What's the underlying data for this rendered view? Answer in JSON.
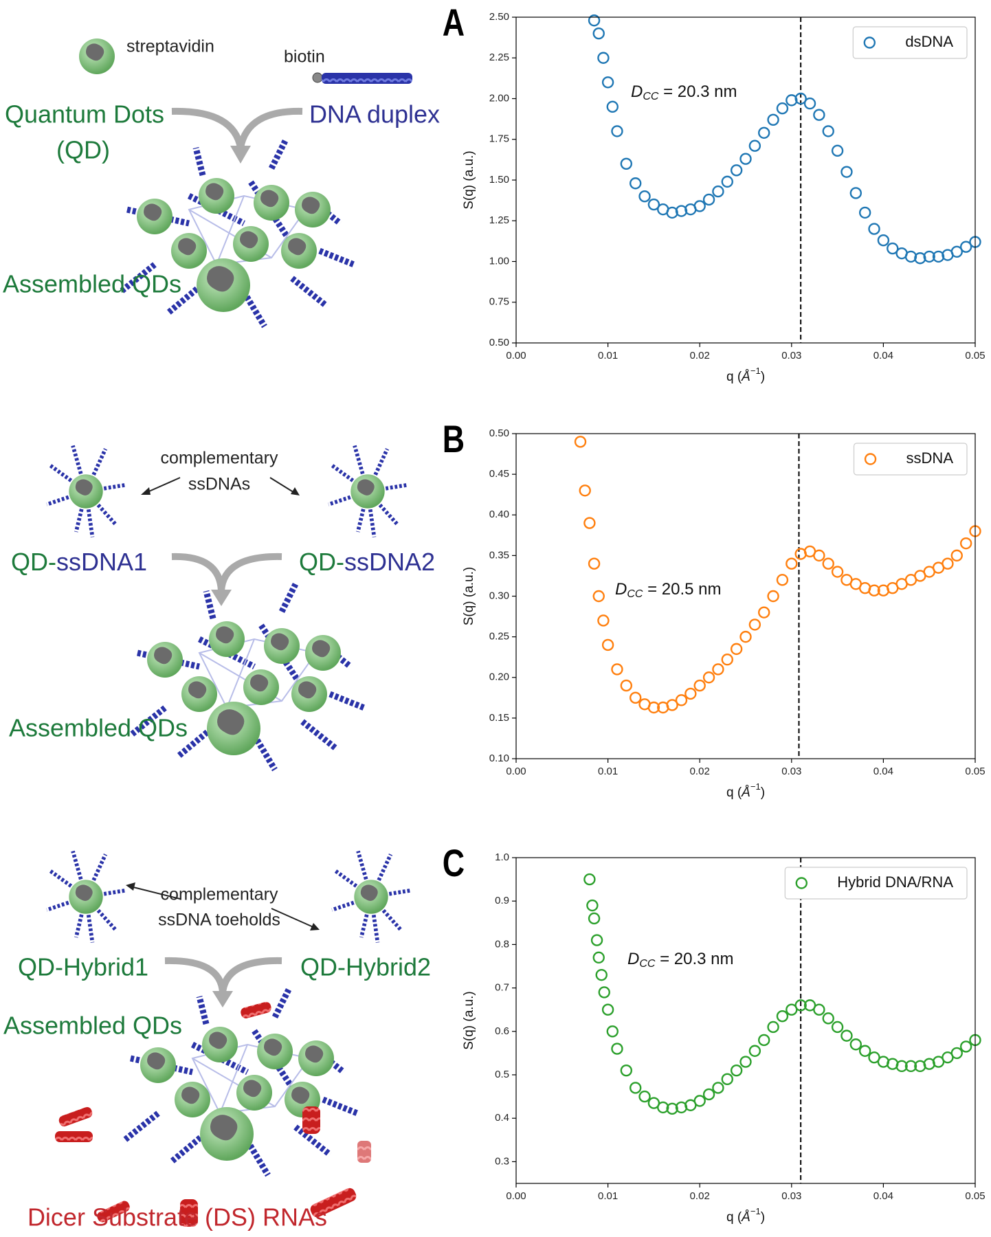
{
  "chart_data": [
    {
      "type": "scatter",
      "panel_label": "A",
      "ylabel": "S(q) (a.u.)",
      "xlabel": {
        "text": "q (",
        "unit": "Å",
        "exponent": "−1",
        "close": ")"
      },
      "xlim": [
        0,
        0.05
      ],
      "ylim": [
        0.5,
        2.5
      ],
      "xticks": [
        {
          "value": 0,
          "label": "0.00"
        },
        0.01,
        0.02,
        0.03,
        0.04,
        0.05
      ],
      "yticks": [
        {
          "value": 0.5,
          "label": "0.50"
        },
        0.75,
        {
          "value": 1,
          "label": "1.00"
        },
        1.25,
        {
          "value": 1.5,
          "label": "1.50"
        },
        1.75,
        {
          "value": 2,
          "label": "2.00"
        },
        2.25,
        {
          "value": 2.5,
          "label": "2.50"
        }
      ],
      "vline": 0.031,
      "annotation": {
        "symbol": "D",
        "subscript": "CC",
        "text": " = 20.3 nm"
      },
      "x": [
        0.0085,
        0.009,
        0.0095,
        0.01,
        0.0105,
        0.011,
        0.012,
        0.013,
        0.014,
        0.015,
        0.016,
        0.017,
        0.018,
        0.019,
        0.02,
        0.021,
        0.022,
        0.023,
        0.024,
        0.025,
        0.026,
        0.027,
        0.028,
        0.029,
        0.03,
        0.031,
        0.032,
        0.033,
        0.034,
        0.035,
        0.036,
        0.037,
        0.038,
        0.039,
        0.04,
        0.041,
        0.042,
        0.043,
        0.044,
        0.045,
        0.046,
        0.047,
        0.048,
        0.049,
        0.05
      ],
      "series": [
        {
          "name": "dsDNA",
          "color": "#1f77b4",
          "values": [
            2.48,
            2.4,
            2.25,
            2.1,
            1.95,
            1.8,
            1.6,
            1.48,
            1.4,
            1.35,
            1.32,
            1.3,
            1.31,
            1.32,
            1.34,
            1.38,
            1.43,
            1.49,
            1.56,
            1.63,
            1.71,
            1.79,
            1.87,
            1.94,
            1.99,
            2.0,
            1.97,
            1.9,
            1.8,
            1.68,
            1.55,
            1.42,
            1.3,
            1.2,
            1.13,
            1.08,
            1.05,
            1.03,
            1.02,
            1.03,
            1.03,
            1.04,
            1.06,
            1.09,
            1.12
          ]
        }
      ]
    },
    {
      "type": "scatter",
      "panel_label": "B",
      "ylabel": "S(q) (a.u.)",
      "xlabel": {
        "text": "q (",
        "unit": "Å",
        "exponent": "−1",
        "close": ")"
      },
      "xlim": [
        0,
        0.05
      ],
      "ylim": [
        0.1,
        0.5
      ],
      "xticks": [
        {
          "value": 0,
          "label": "0.00"
        },
        0.01,
        0.02,
        0.03,
        0.04,
        0.05
      ],
      "yticks": [
        {
          "value": 0.1,
          "label": "0.10"
        },
        0.15,
        {
          "value": 0.2,
          "label": "0.20"
        },
        0.25,
        {
          "value": 0.3,
          "label": "0.30"
        },
        0.35,
        {
          "value": 0.4,
          "label": "0.40"
        },
        0.45,
        {
          "value": 0.5,
          "label": "0.50"
        }
      ],
      "vline": 0.0308,
      "annotation": {
        "symbol": "D",
        "subscript": "CC",
        "text": " = 20.5 nm"
      },
      "x": [
        0.007,
        0.0075,
        0.008,
        0.0085,
        0.009,
        0.0095,
        0.01,
        0.011,
        0.012,
        0.013,
        0.014,
        0.015,
        0.016,
        0.017,
        0.018,
        0.019,
        0.02,
        0.021,
        0.022,
        0.023,
        0.024,
        0.025,
        0.026,
        0.027,
        0.028,
        0.029,
        0.03,
        0.031,
        0.032,
        0.033,
        0.034,
        0.035,
        0.036,
        0.037,
        0.038,
        0.039,
        0.04,
        0.041,
        0.042,
        0.043,
        0.044,
        0.045,
        0.046,
        0.047,
        0.048,
        0.049,
        0.05
      ],
      "series": [
        {
          "name": "ssDNA",
          "color": "#ff7f0e",
          "values": [
            0.49,
            0.43,
            0.39,
            0.34,
            0.3,
            0.27,
            0.24,
            0.21,
            0.19,
            0.175,
            0.167,
            0.163,
            0.163,
            0.166,
            0.172,
            0.18,
            0.19,
            0.2,
            0.21,
            0.222,
            0.235,
            0.25,
            0.265,
            0.28,
            0.3,
            0.32,
            0.34,
            0.352,
            0.355,
            0.35,
            0.34,
            0.33,
            0.32,
            0.315,
            0.31,
            0.307,
            0.307,
            0.31,
            0.315,
            0.32,
            0.325,
            0.33,
            0.335,
            0.34,
            0.35,
            0.365,
            0.38
          ]
        }
      ]
    },
    {
      "type": "scatter",
      "panel_label": "C",
      "ylabel": "S(q) (a.u.)",
      "xlabel": {
        "text": "q (",
        "unit": "Å",
        "exponent": "−1",
        "close": ")"
      },
      "xlim": [
        0,
        0.05
      ],
      "ylim": [
        0.25,
        1.0
      ],
      "xticks": [
        {
          "value": 0,
          "label": "0.00"
        },
        0.01,
        0.02,
        0.03,
        0.04,
        0.05
      ],
      "yticks": [
        0.3,
        0.4,
        0.5,
        0.6,
        0.7,
        0.8,
        0.9,
        {
          "value": 1,
          "label": "1.0"
        }
      ],
      "vline": 0.031,
      "annotation": {
        "symbol": "D",
        "subscript": "CC",
        "text": " = 20.3 nm"
      },
      "x": [
        0.008,
        0.0083,
        0.0085,
        0.0088,
        0.009,
        0.0093,
        0.0096,
        0.01,
        0.0105,
        0.011,
        0.012,
        0.013,
        0.014,
        0.015,
        0.016,
        0.017,
        0.018,
        0.019,
        0.02,
        0.021,
        0.022,
        0.023,
        0.024,
        0.025,
        0.026,
        0.027,
        0.028,
        0.029,
        0.03,
        0.031,
        0.032,
        0.033,
        0.034,
        0.035,
        0.036,
        0.037,
        0.038,
        0.039,
        0.04,
        0.041,
        0.042,
        0.043,
        0.044,
        0.045,
        0.046,
        0.047,
        0.048,
        0.049,
        0.05
      ],
      "series": [
        {
          "name": "Hybrid DNA/RNA",
          "color": "#2ca02c",
          "values": [
            0.95,
            0.89,
            0.86,
            0.81,
            0.77,
            0.73,
            0.69,
            0.65,
            0.6,
            0.56,
            0.51,
            0.47,
            0.45,
            0.435,
            0.425,
            0.422,
            0.425,
            0.43,
            0.44,
            0.455,
            0.47,
            0.49,
            0.51,
            0.53,
            0.555,
            0.58,
            0.61,
            0.635,
            0.65,
            0.66,
            0.66,
            0.65,
            0.63,
            0.61,
            0.59,
            0.57,
            0.555,
            0.54,
            0.53,
            0.525,
            0.52,
            0.52,
            0.52,
            0.525,
            0.53,
            0.54,
            0.55,
            0.565,
            0.58
          ]
        }
      ]
    }
  ],
  "diagram": {
    "panel_1": {
      "protein": "streptavidin",
      "ligand": "biotin",
      "left_label": "Quantum Dots",
      "left_label_2": "(QD)",
      "right_label": "DNA duplex",
      "product": "Assembled QDs"
    },
    "panel_2": {
      "note_1": "complementary",
      "note_2": "ssDNAs",
      "left_prefix": "QD-",
      "left_suffix": "ssDNA1",
      "right_prefix": "QD-",
      "right_suffix": "ssDNA2",
      "product": "Assembled QDs"
    },
    "panel_3": {
      "note_1": "complementary",
      "note_2": "ssDNA toeholds",
      "left_label": "QD-Hybrid1",
      "right_label": "QD-Hybrid2",
      "product": "Assembled QDs",
      "byproduct": "Dicer Substrate (DS) RNAs"
    }
  }
}
